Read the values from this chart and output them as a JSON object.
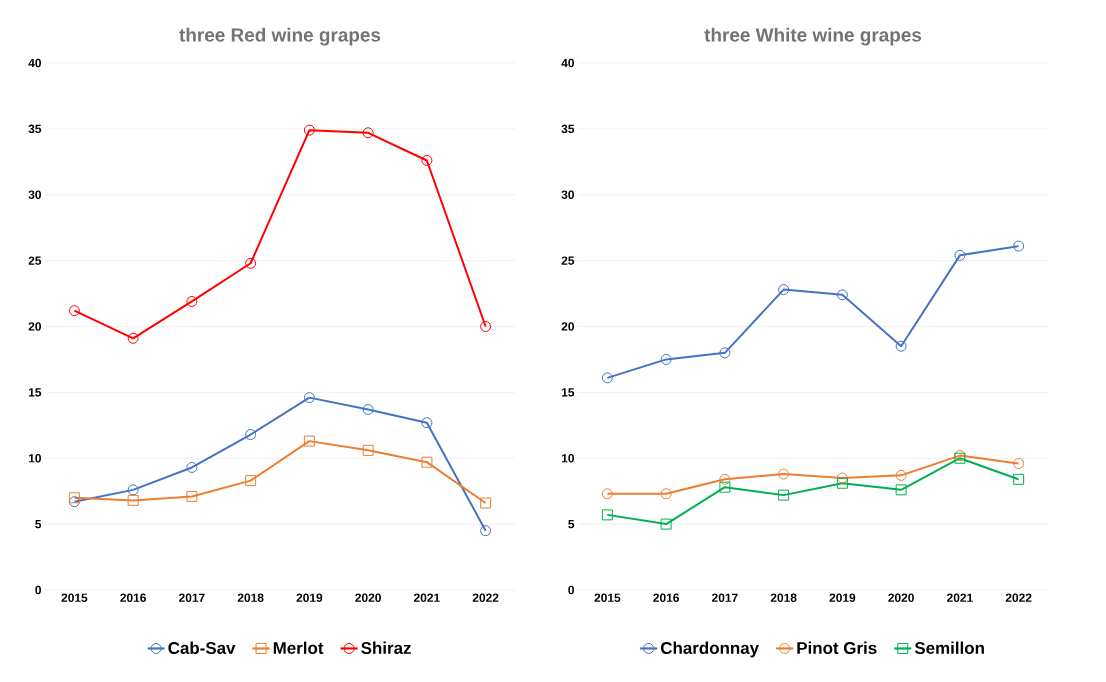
{
  "chart_data": [
    {
      "type": "line",
      "title": "three Red wine grapes",
      "categories": [
        "2015",
        "2016",
        "2017",
        "2018",
        "2019",
        "2020",
        "2021",
        "2022"
      ],
      "ylim": [
        0,
        40
      ],
      "yticks": [
        0,
        5,
        10,
        15,
        20,
        25,
        30,
        35,
        40
      ],
      "grid": "y",
      "legend": "bottom",
      "series": [
        {
          "name": "Cab-Sav",
          "color": "#4472c4",
          "marker": "circle",
          "values": [
            6.7,
            7.6,
            9.3,
            11.8,
            14.6,
            13.7,
            12.7,
            4.5
          ]
        },
        {
          "name": "Merlot",
          "color": "#ed7d31",
          "marker": "square",
          "values": [
            7.0,
            6.8,
            7.1,
            8.3,
            11.3,
            10.6,
            9.7,
            6.6
          ]
        },
        {
          "name": "Shiraz",
          "color": "#ff0000",
          "marker": "circle",
          "values": [
            21.2,
            19.1,
            21.9,
            24.8,
            34.9,
            34.7,
            32.6,
            20.0
          ]
        }
      ]
    },
    {
      "type": "line",
      "title": "three White wine grapes",
      "categories": [
        "2015",
        "2016",
        "2017",
        "2018",
        "2019",
        "2020",
        "2021",
        "2022"
      ],
      "ylim": [
        0,
        40
      ],
      "yticks": [
        0,
        5,
        10,
        15,
        20,
        25,
        30,
        35,
        40
      ],
      "grid": "y",
      "legend": "bottom",
      "series": [
        {
          "name": "Chardonnay",
          "color": "#4472c4",
          "marker": "circle",
          "values": [
            16.1,
            17.5,
            18.0,
            22.8,
            22.4,
            18.5,
            25.4,
            26.1
          ]
        },
        {
          "name": "Pinot Gris",
          "color": "#ed7d31",
          "marker": "circle",
          "values": [
            7.3,
            7.3,
            8.4,
            8.8,
            8.5,
            8.7,
            10.2,
            9.6
          ]
        },
        {
          "name": "Semillon",
          "color": "#00b050",
          "marker": "square",
          "values": [
            5.7,
            5.0,
            7.8,
            7.2,
            8.1,
            7.6,
            10.0,
            8.4
          ]
        }
      ]
    }
  ]
}
